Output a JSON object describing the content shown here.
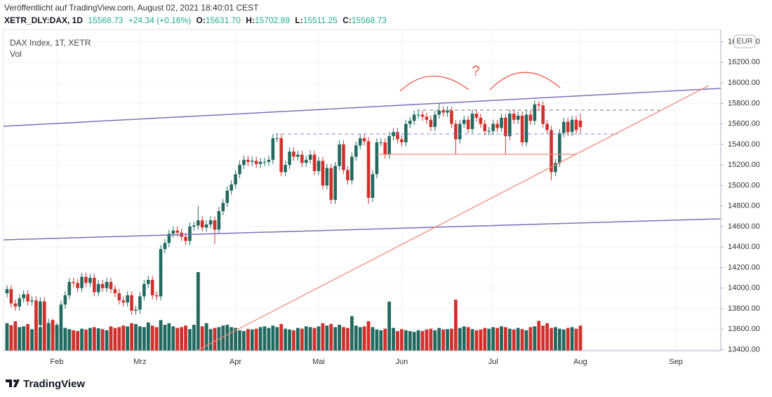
{
  "header": {
    "published": "Veröffentlicht auf TradingView.com, August 02, 2021 18:40:01 CEST",
    "symbol": "XETR_DLY:DAX, 1D",
    "last": "15568.73",
    "change": "+24.34 (+0.16%)",
    "ohlc": [
      {
        "key": "O:",
        "value": "15631.70"
      },
      {
        "key": "H:",
        "value": "15702.89"
      },
      {
        "key": "L:",
        "value": "15511.25"
      },
      {
        "key": "C:",
        "value": "15568.73"
      }
    ]
  },
  "footer": {
    "brand": "TradingView"
  },
  "chart_data": {
    "type": "candlestick",
    "title": "DAX Index, 1T, XETR",
    "volume_label": "Vol",
    "currency": "EUR",
    "annotations": [
      "?"
    ],
    "grid": true,
    "up_color": "#22695f",
    "down_color": "#d3302c",
    "ylim": [
      13390,
      16520
    ],
    "yticks": [
      {
        "value": 13400,
        "label": "13400.00"
      },
      {
        "value": 13600,
        "label": "13600.00"
      },
      {
        "value": 13800,
        "label": "13800.00"
      },
      {
        "value": 14000,
        "label": "14000.00"
      },
      {
        "value": 14200,
        "label": "14200.00"
      },
      {
        "value": 14400,
        "label": "14400.00"
      },
      {
        "value": 14600,
        "label": "14600.00"
      },
      {
        "value": 14800,
        "label": "14800.00"
      },
      {
        "value": 15000,
        "label": "15000.00"
      },
      {
        "value": 15200,
        "label": "15200.00"
      },
      {
        "value": 15400,
        "label": "15400.00"
      },
      {
        "value": 15600,
        "label": "15600.00"
      },
      {
        "value": 15800,
        "label": "15800.00"
      },
      {
        "value": 16000,
        "label": "16000.00"
      },
      {
        "value": 16200,
        "label": "16200.00"
      },
      {
        "value": 16400,
        "label": "16400.00"
      }
    ],
    "categories": [
      null,
      null,
      null,
      null,
      null,
      null,
      null,
      null,
      null,
      null,
      null,
      null,
      "Feb",
      null,
      null,
      null,
      null,
      null,
      null,
      null,
      null,
      null,
      null,
      null,
      null,
      null,
      null,
      null,
      null,
      null,
      null,
      null,
      "Mrz",
      null,
      null,
      null,
      null,
      null,
      null,
      null,
      null,
      null,
      null,
      null,
      null,
      null,
      null,
      null,
      null,
      null,
      null,
      null,
      null,
      null,
      null,
      "Apr",
      null,
      null,
      null,
      null,
      null,
      null,
      null,
      null,
      null,
      null,
      null,
      null,
      null,
      null,
      null,
      null,
      null,
      null,
      null,
      "Mai",
      null,
      null,
      null,
      null,
      null,
      null,
      null,
      null,
      null,
      null,
      null,
      null,
      null,
      null,
      null,
      null,
      null,
      null,
      null,
      "Jun",
      null,
      null,
      null,
      null,
      null,
      null,
      null,
      null,
      null,
      null,
      null,
      null,
      null,
      null,
      null,
      null,
      null,
      null,
      null,
      null,
      null,
      "Jul",
      null,
      null,
      null,
      null,
      null,
      null,
      null,
      null,
      null,
      null,
      null,
      null,
      null,
      null,
      null,
      null,
      null,
      null,
      null,
      null,
      "Aug",
      null,
      null,
      null,
      null,
      null,
      null,
      null,
      null,
      null,
      null,
      null,
      null,
      null,
      null,
      null,
      null,
      null,
      null,
      null,
      null,
      null,
      null,
      "Sep",
      null,
      null,
      null,
      null,
      null,
      null,
      null,
      null,
      null,
      null
    ],
    "open": [
      13950,
      13990,
      13850,
      13820,
      13900,
      13940,
      13870,
      13880,
      13640,
      13870,
      13620,
      13660,
      13560,
      13620,
      13840,
      13930,
      14060,
      14050,
      14000,
      14110,
      14050,
      14100,
      13960,
      14040,
      14000,
      14060,
      13990,
      13950,
      13880,
      13860,
      13930,
      13780,
      13790,
      13920,
      14040,
      14080,
      13930,
      13920,
      14380,
      14440,
      14530,
      14560,
      14540,
      14500,
      14460,
      14600,
      14610,
      14660,
      14590,
      14620,
      14660,
      14570,
      14750,
      14830,
      14950,
      15010,
      15110,
      15200,
      15250,
      15230,
      15240,
      15210,
      15230,
      15230,
      15250,
      15460,
      15460,
      15130,
      15200,
      15330,
      15280,
      15300,
      15220,
      15250,
      15300,
      15140,
      15240,
      15000,
      15170,
      14860,
      15190,
      15400,
      15150,
      15050,
      15280,
      15390,
      15460,
      15430,
      14880,
      15110,
      15420,
      15420,
      15300,
      15480,
      15520,
      15450,
      15420,
      15600,
      15630,
      15690,
      15690,
      15670,
      15640,
      15570,
      15690,
      15730,
      15710,
      15730,
      15600,
      15450,
      15600,
      15640,
      15550,
      15700,
      15660,
      15600,
      15530,
      15530,
      15600,
      15560,
      15660,
      15480,
      15700,
      15640,
      15680,
      15420,
      15690,
      15630,
      15790,
      15780,
      15600,
      15540,
      15130,
      15220,
      15510,
      15620,
      15520,
      15640,
      15631.7,
      null,
      null,
      null,
      null,
      null,
      null,
      null,
      null,
      null,
      null,
      null,
      null,
      null,
      null,
      null,
      null,
      null,
      null,
      null,
      null,
      null,
      null,
      null,
      null,
      null,
      null,
      null,
      null,
      null,
      null,
      null,
      null,
      null
    ],
    "high": [
      14030,
      14030,
      13890,
      13940,
      13980,
      13980,
      13920,
      13920,
      13910,
      13910,
      13700,
      13700,
      13660,
      13880,
      13970,
      14100,
      14100,
      14090,
      14150,
      14150,
      14140,
      14140,
      14080,
      14080,
      14100,
      14100,
      14030,
      13990,
      13920,
      13970,
      13970,
      13830,
      13960,
      14080,
      14120,
      14120,
      13970,
      14420,
      14480,
      14570,
      14600,
      14600,
      14580,
      14540,
      14640,
      14650,
      14800,
      14700,
      14660,
      14700,
      14700,
      14790,
      14870,
      14990,
      15050,
      15150,
      15240,
      15290,
      15290,
      15280,
      15280,
      15270,
      15270,
      15290,
      15500,
      15500,
      15500,
      15240,
      15370,
      15370,
      15340,
      15340,
      15290,
      15340,
      15340,
      15280,
      15280,
      15210,
      15210,
      15230,
      15440,
      15440,
      15190,
      15320,
      15430,
      15500,
      15500,
      15470,
      15150,
      15460,
      15460,
      15460,
      15520,
      15560,
      15560,
      15490,
      15640,
      15670,
      15730,
      15730,
      15730,
      15710,
      15680,
      15730,
      15800,
      15770,
      15770,
      15770,
      15640,
      15640,
      15680,
      15680,
      15740,
      15740,
      15700,
      15640,
      15570,
      15640,
      15640,
      15700,
      15700,
      15740,
      15740,
      15720,
      15720,
      15730,
      15730,
      15830,
      15820,
      15820,
      15640,
      15580,
      15260,
      15550,
      15660,
      15660,
      15680,
      15680,
      15702.89,
      null,
      null,
      null,
      null,
      null,
      null,
      null,
      null,
      null,
      null,
      null,
      null,
      null,
      null,
      null,
      null,
      null,
      null,
      null,
      null,
      null,
      null,
      null,
      null,
      null,
      null,
      null,
      null,
      null,
      null,
      null,
      null,
      null
    ],
    "low": [
      13910,
      13810,
      13780,
      13780,
      13860,
      13830,
      13830,
      13600,
      13600,
      13580,
      13580,
      13520,
      13520,
      13580,
      13800,
      13890,
      14010,
      13960,
      13960,
      14010,
      14010,
      13920,
      13920,
      13960,
      13960,
      13950,
      13910,
      13840,
      13820,
      13820,
      13740,
      13740,
      13750,
      13880,
      14000,
      13890,
      13880,
      13880,
      14340,
      14400,
      14490,
      14500,
      14460,
      14420,
      14420,
      14560,
      14570,
      14550,
      14550,
      14580,
      14430,
      14530,
      14710,
      14790,
      14910,
      14970,
      15070,
      15160,
      15190,
      15190,
      15170,
      15170,
      15190,
      15190,
      15210,
      15420,
      15090,
      15090,
      15160,
      15240,
      15240,
      15180,
      15180,
      15210,
      15100,
      15100,
      14960,
      14960,
      14820,
      14820,
      15150,
      15110,
      15010,
      15010,
      15240,
      15350,
      15390,
      14820,
      14840,
      15070,
      15380,
      15260,
      15260,
      15440,
      15410,
      15380,
      15380,
      15560,
      15590,
      15650,
      15630,
      15600,
      15530,
      15530,
      15650,
      15670,
      15670,
      15560,
      15300,
      15410,
      15560,
      15510,
      15510,
      15620,
      15560,
      15490,
      15490,
      15490,
      15520,
      15520,
      15300,
      15440,
      15600,
      15600,
      15380,
      15380,
      15590,
      15590,
      15740,
      15560,
      15500,
      15050,
      15090,
      15180,
      15470,
      15480,
      15480,
      15500,
      15511.25,
      null,
      null,
      null,
      null,
      null,
      null,
      null,
      null,
      null,
      null,
      null,
      null,
      null,
      null,
      null,
      null,
      null,
      null,
      null,
      null,
      null,
      null,
      null,
      null,
      null,
      null,
      null,
      null,
      null,
      null,
      null,
      null,
      null
    ],
    "close": [
      13990,
      13850,
      13820,
      13900,
      13940,
      13870,
      13880,
      13640,
      13870,
      13620,
      13660,
      13560,
      13620,
      13840,
      13930,
      14060,
      14050,
      14000,
      14110,
      14050,
      14100,
      13960,
      14040,
      14000,
      14060,
      13990,
      13950,
      13880,
      13860,
      13930,
      13780,
      13790,
      13920,
      14040,
      14080,
      13930,
      13920,
      14380,
      14440,
      14530,
      14560,
      14540,
      14500,
      14460,
      14600,
      14610,
      14660,
      14590,
      14620,
      14660,
      14570,
      14750,
      14830,
      14950,
      15010,
      15110,
      15200,
      15250,
      15230,
      15240,
      15210,
      15230,
      15230,
      15250,
      15460,
      15460,
      15130,
      15200,
      15330,
      15280,
      15300,
      15220,
      15250,
      15300,
      15140,
      15240,
      15000,
      15170,
      14860,
      15190,
      15400,
      15150,
      15050,
      15280,
      15390,
      15460,
      15430,
      14880,
      15110,
      15420,
      15420,
      15300,
      15480,
      15520,
      15450,
      15420,
      15600,
      15630,
      15690,
      15690,
      15670,
      15640,
      15570,
      15690,
      15730,
      15710,
      15730,
      15600,
      15450,
      15600,
      15640,
      15550,
      15700,
      15660,
      15600,
      15530,
      15530,
      15600,
      15560,
      15660,
      15480,
      15700,
      15640,
      15680,
      15420,
      15690,
      15630,
      15790,
      15780,
      15600,
      15540,
      15130,
      15220,
      15510,
      15620,
      15520,
      15640,
      15540,
      15568.73,
      null,
      null,
      null,
      null,
      null,
      null,
      null,
      null,
      null,
      null,
      null,
      null,
      null,
      null,
      null,
      null,
      null,
      null,
      null,
      null,
      null,
      null,
      null,
      null,
      null,
      null,
      null,
      null,
      null,
      null,
      null,
      null,
      null
    ],
    "volume": [
      70,
      65,
      75,
      60,
      62,
      68,
      55,
      80,
      60,
      72,
      65,
      78,
      66,
      60,
      58,
      55,
      52,
      50,
      56,
      54,
      58,
      60,
      57,
      55,
      52,
      62,
      58,
      60,
      64,
      62,
      70,
      68,
      62,
      60,
      72,
      64,
      60,
      78,
      66,
      70,
      62,
      58,
      60,
      64,
      55,
      66,
      200,
      62,
      70,
      55,
      58,
      60,
      64,
      66,
      60,
      58,
      52,
      50,
      55,
      54,
      56,
      60,
      62,
      58,
      64,
      60,
      68,
      56,
      54,
      52,
      58,
      56,
      62,
      60,
      58,
      62,
      70,
      64,
      68,
      60,
      66,
      60,
      58,
      88,
      64,
      60,
      62,
      75,
      60,
      54,
      52,
      56,
      125,
      58,
      50,
      55,
      52,
      50,
      48,
      52,
      50,
      54,
      56,
      52,
      58,
      54,
      55,
      56,
      130,
      58,
      62,
      60,
      55,
      52,
      54,
      58,
      56,
      60,
      58,
      62,
      60,
      56,
      54,
      58,
      55,
      52,
      60,
      62,
      76,
      64,
      70,
      58,
      60,
      56,
      54,
      58,
      60,
      56,
      64,
      null,
      null,
      null,
      null,
      null,
      null,
      null,
      null,
      null,
      null,
      null,
      null,
      null,
      null,
      null,
      null,
      null,
      null,
      null,
      null,
      null,
      null,
      null,
      null,
      null,
      null,
      null,
      null,
      null,
      null,
      null,
      null,
      null
    ]
  }
}
